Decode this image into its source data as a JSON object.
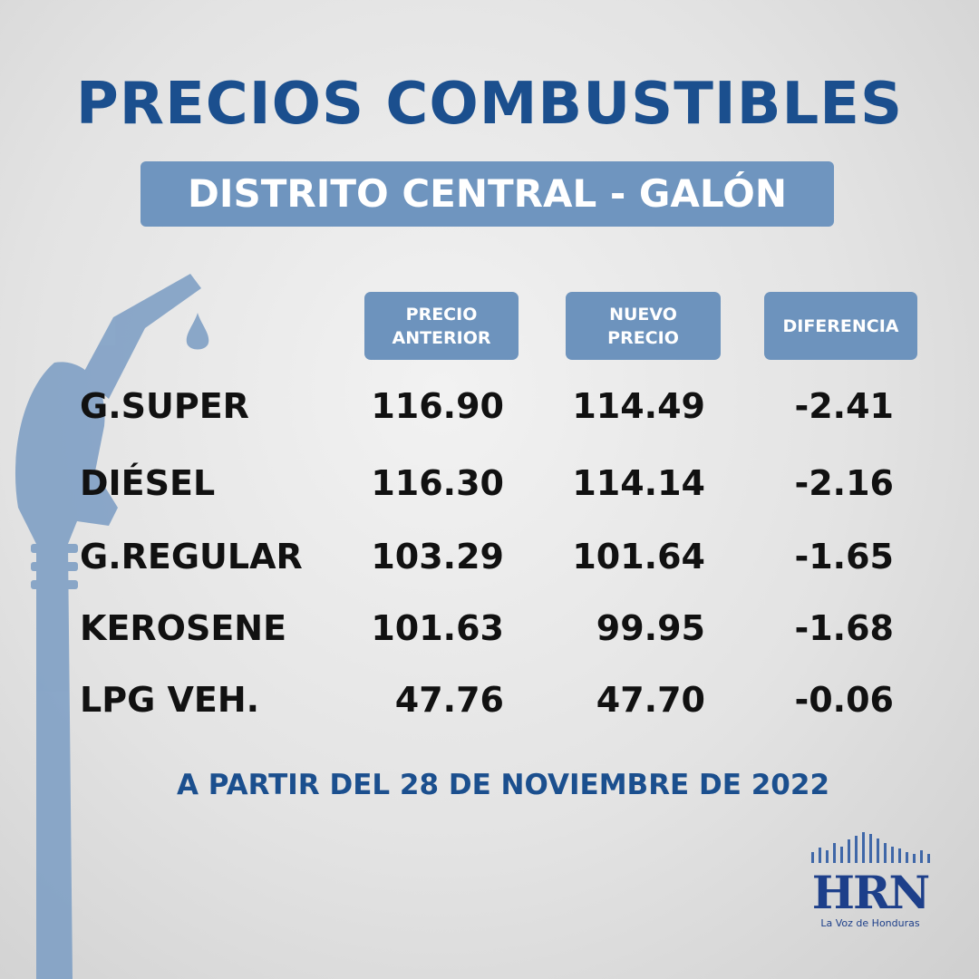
{
  "header": {
    "title": "PRECIOS COMBUSTIBLES",
    "subtitle": "DISTRITO CENTRAL - GALÓN"
  },
  "table": {
    "columns": [
      "PRECIO ANTERIOR",
      "NUEVO PRECIO",
      "DIFERENCIA"
    ],
    "rows": [
      [
        "G.SUPER",
        "116.90",
        "114.49",
        "-2.41"
      ],
      [
        "DIÉSEL",
        "116.30",
        "114.14",
        "-2.16"
      ],
      [
        "G.REGULAR",
        "103.29",
        "101.64",
        "-1.65"
      ],
      [
        "KEROSENE",
        "101.63",
        "99.95",
        "-1.68"
      ],
      [
        "LPG VEH.",
        "47.76",
        "47.70",
        "-0.06"
      ]
    ]
  },
  "footer": {
    "note": "A PARTIR DEL 28 DE NOVIEMBRE DE 2022"
  },
  "logo": {
    "name": "HRN",
    "tagline": "La Voz de Honduras"
  }
}
